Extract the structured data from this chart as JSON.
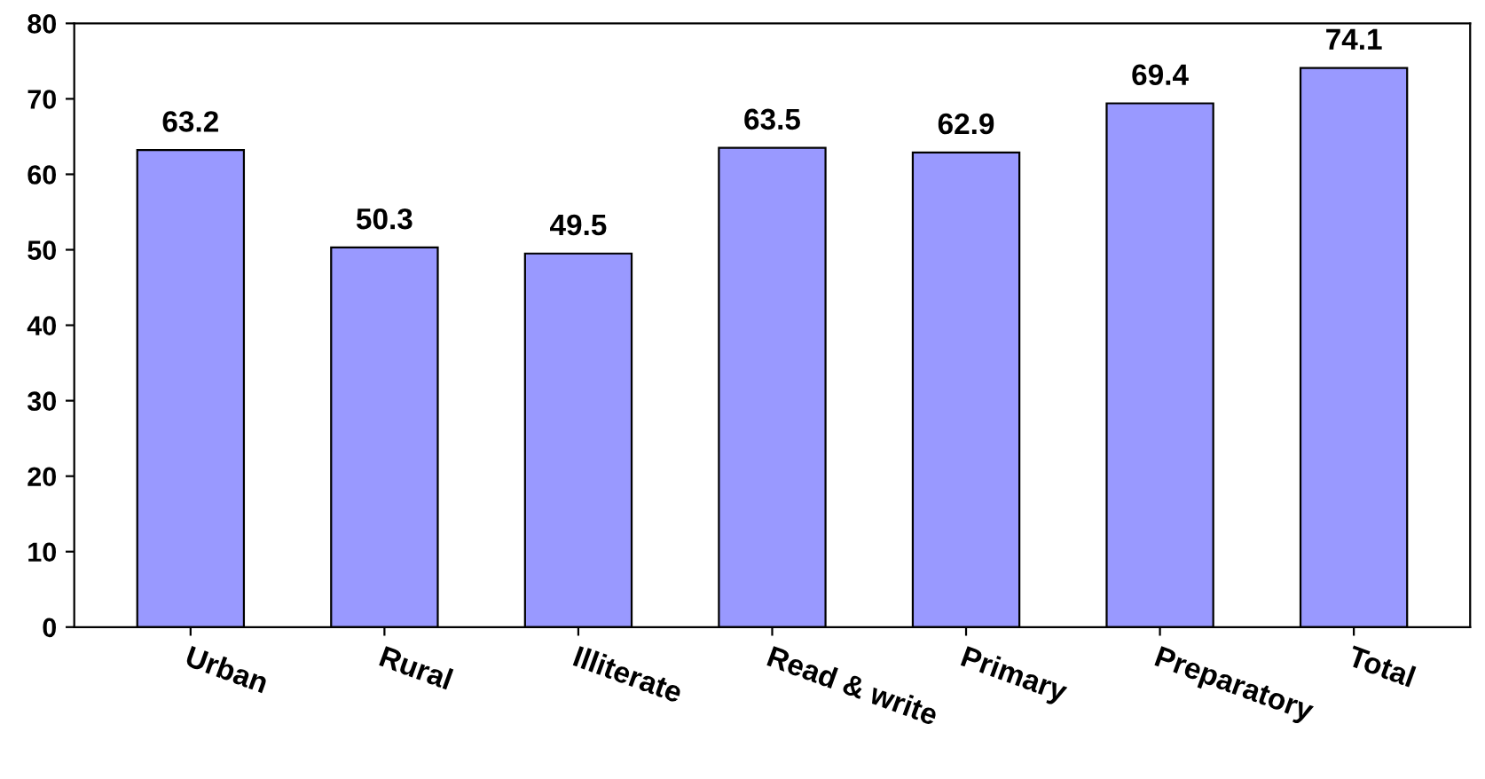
{
  "chart_data": {
    "type": "bar",
    "categories": [
      "Urban",
      "Rural",
      "Illiterate",
      "Read & write",
      "Primary",
      "Preparatory",
      "Total"
    ],
    "values": [
      63.2,
      50.3,
      49.5,
      63.5,
      62.9,
      69.4,
      74.1
    ],
    "color": "#9999ff",
    "ylim": [
      0,
      80
    ],
    "yticks": [
      0,
      10,
      20,
      30,
      40,
      50,
      60,
      70,
      80
    ],
    "grid": false,
    "data_labels": true
  }
}
